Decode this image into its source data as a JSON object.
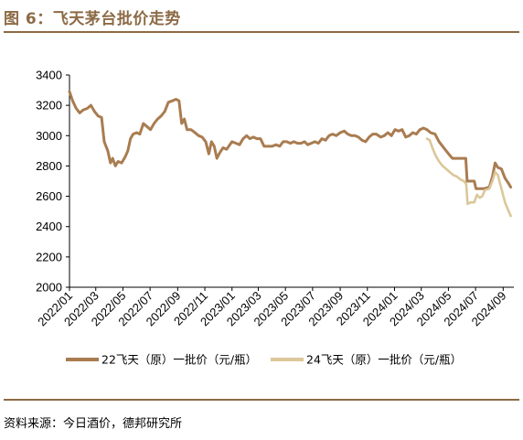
{
  "figure": {
    "title": "图 6：飞天茅台批价走势",
    "source": "资料来源：今日酒价，德邦研究所"
  },
  "chart_data": {
    "type": "line",
    "title": "",
    "xlabel": "",
    "ylabel": "",
    "ylim": [
      2000,
      3400
    ],
    "yticks": [
      "2000",
      "2200",
      "2400",
      "2600",
      "2800",
      "3000",
      "3200",
      "3400"
    ],
    "xticks": [
      "2022/01",
      "2022/03",
      "2022/05",
      "2022/07",
      "2022/09",
      "2022/11",
      "2023/01",
      "2023/03",
      "2023/05",
      "2023/07",
      "2023/09",
      "2023/11",
      "2024/01",
      "2024/03",
      "2024/05",
      "2024/07",
      "2024/09"
    ],
    "grid": false,
    "legend_position": "bottom",
    "series": [
      {
        "name": "22飞天（原）一批价（元/瓶）",
        "color": "#a97c50",
        "points": [
          [
            "2022/01/01",
            3290
          ],
          [
            "2022/01/08",
            3230
          ],
          [
            "2022/01/16",
            3180
          ],
          [
            "2022/01/24",
            3150
          ],
          [
            "2022/02/01",
            3170
          ],
          [
            "2022/02/10",
            3180
          ],
          [
            "2022/02/18",
            3200
          ],
          [
            "2022/02/26",
            3160
          ],
          [
            "2022/03/06",
            3130
          ],
          [
            "2022/03/14",
            3120
          ],
          [
            "2022/03/20",
            2960
          ],
          [
            "2022/03/28",
            2900
          ],
          [
            "2022/04/03",
            2820
          ],
          [
            "2022/04/08",
            2850
          ],
          [
            "2022/04/14",
            2800
          ],
          [
            "2022/04/20",
            2830
          ],
          [
            "2022/04/28",
            2820
          ],
          [
            "2022/05/06",
            2860
          ],
          [
            "2022/05/12",
            2900
          ],
          [
            "2022/05/18",
            2980
          ],
          [
            "2022/05/24",
            3010
          ],
          [
            "2022/06/01",
            3020
          ],
          [
            "2022/06/08",
            3010
          ],
          [
            "2022/06/16",
            3080
          ],
          [
            "2022/06/24",
            3060
          ],
          [
            "2022/07/02",
            3040
          ],
          [
            "2022/07/10",
            3080
          ],
          [
            "2022/07/18",
            3110
          ],
          [
            "2022/07/26",
            3130
          ],
          [
            "2022/08/03",
            3160
          ],
          [
            "2022/08/11",
            3220
          ],
          [
            "2022/08/20",
            3230
          ],
          [
            "2022/08/28",
            3240
          ],
          [
            "2022/09/04",
            3230
          ],
          [
            "2022/09/10",
            3080
          ],
          [
            "2022/09/16",
            3110
          ],
          [
            "2022/09/22",
            3040
          ],
          [
            "2022/10/01",
            3040
          ],
          [
            "2022/10/10",
            3020
          ],
          [
            "2022/10/18",
            3000
          ],
          [
            "2022/10/26",
            2990
          ],
          [
            "2022/11/03",
            2960
          ],
          [
            "2022/11/10",
            2880
          ],
          [
            "2022/11/16",
            2960
          ],
          [
            "2022/11/22",
            2930
          ],
          [
            "2022/11/28",
            2850
          ],
          [
            "2022/12/05",
            2890
          ],
          [
            "2022/12/12",
            2920
          ],
          [
            "2022/12/20",
            2910
          ],
          [
            "2023/01/01",
            2960
          ],
          [
            "2023/01/10",
            2950
          ],
          [
            "2023/01/18",
            2940
          ],
          [
            "2023/01/26",
            2980
          ],
          [
            "2023/02/03",
            3000
          ],
          [
            "2023/02/10",
            2980
          ],
          [
            "2023/02/18",
            2990
          ],
          [
            "2023/02/26",
            2980
          ],
          [
            "2023/03/06",
            2980
          ],
          [
            "2023/03/14",
            2930
          ],
          [
            "2023/03/22",
            2930
          ],
          [
            "2023/04/01",
            2930
          ],
          [
            "2023/04/10",
            2940
          ],
          [
            "2023/04/18",
            2930
          ],
          [
            "2023/04/26",
            2960
          ],
          [
            "2023/05/04",
            2960
          ],
          [
            "2023/05/12",
            2950
          ],
          [
            "2023/05/20",
            2960
          ],
          [
            "2023/05/28",
            2950
          ],
          [
            "2023/06/05",
            2950
          ],
          [
            "2023/06/13",
            2960
          ],
          [
            "2023/06/20",
            2940
          ],
          [
            "2023/06/28",
            2950
          ],
          [
            "2023/07/06",
            2960
          ],
          [
            "2023/07/14",
            2950
          ],
          [
            "2023/07/22",
            2980
          ],
          [
            "2023/07/30",
            2970
          ],
          [
            "2023/08/07",
            3000
          ],
          [
            "2023/08/15",
            3010
          ],
          [
            "2023/08/23",
            3000
          ],
          [
            "2023/09/01",
            3020
          ],
          [
            "2023/09/10",
            3030
          ],
          [
            "2023/09/18",
            3010
          ],
          [
            "2023/09/26",
            3000
          ],
          [
            "2023/10/04",
            3000
          ],
          [
            "2023/10/12",
            2990
          ],
          [
            "2023/10/20",
            2970
          ],
          [
            "2023/10/28",
            2960
          ],
          [
            "2023/11/05",
            2990
          ],
          [
            "2023/11/13",
            3010
          ],
          [
            "2023/11/21",
            3010
          ],
          [
            "2023/12/01",
            2990
          ],
          [
            "2023/12/09",
            3000
          ],
          [
            "2023/12/17",
            3020
          ],
          [
            "2023/12/25",
            3000
          ],
          [
            "2024/01/02",
            3040
          ],
          [
            "2024/01/10",
            3030
          ],
          [
            "2024/01/18",
            3040
          ],
          [
            "2024/01/26",
            2990
          ],
          [
            "2024/02/03",
            3000
          ],
          [
            "2024/02/11",
            3020
          ],
          [
            "2024/02/19",
            3010
          ],
          [
            "2024/02/27",
            3040
          ],
          [
            "2024/03/06",
            3050
          ],
          [
            "2024/03/14",
            3040
          ],
          [
            "2024/03/22",
            3020
          ],
          [
            "2024/04/01",
            3010
          ],
          [
            "2024/04/10",
            2960
          ],
          [
            "2024/04/18",
            2930
          ],
          [
            "2024/04/26",
            2900
          ],
          [
            "2024/05/04",
            2870
          ],
          [
            "2024/05/10",
            2850
          ],
          [
            "2024/05/20",
            2850
          ],
          [
            "2024/06/01",
            2850
          ],
          [
            "2024/06/09",
            2850
          ],
          [
            "2024/06/12",
            2700
          ],
          [
            "2024/06/20",
            2700
          ],
          [
            "2024/06/28",
            2700
          ],
          [
            "2024/07/02",
            2650
          ],
          [
            "2024/07/10",
            2650
          ],
          [
            "2024/07/20",
            2650
          ],
          [
            "2024/08/01",
            2660
          ],
          [
            "2024/08/08",
            2730
          ],
          [
            "2024/08/14",
            2820
          ],
          [
            "2024/08/20",
            2790
          ],
          [
            "2024/08/28",
            2780
          ],
          [
            "2024/09/05",
            2720
          ],
          [
            "2024/09/12",
            2690
          ],
          [
            "2024/09/18",
            2660
          ]
        ]
      },
      {
        "name": "24飞天（原）一批价（元/瓶）",
        "color": "#dbc79a",
        "points": [
          [
            "2024/03/14",
            2980
          ],
          [
            "2024/03/20",
            2970
          ],
          [
            "2024/03/26",
            2920
          ],
          [
            "2024/04/02",
            2870
          ],
          [
            "2024/04/10",
            2830
          ],
          [
            "2024/04/18",
            2800
          ],
          [
            "2024/04/26",
            2780
          ],
          [
            "2024/05/04",
            2760
          ],
          [
            "2024/05/12",
            2740
          ],
          [
            "2024/05/20",
            2730
          ],
          [
            "2024/05/28",
            2710
          ],
          [
            "2024/06/05",
            2700
          ],
          [
            "2024/06/10",
            2680
          ],
          [
            "2024/06/13",
            2550
          ],
          [
            "2024/06/20",
            2560
          ],
          [
            "2024/06/28",
            2560
          ],
          [
            "2024/07/04",
            2610
          ],
          [
            "2024/07/10",
            2590
          ],
          [
            "2024/07/16",
            2600
          ],
          [
            "2024/07/22",
            2640
          ],
          [
            "2024/08/01",
            2650
          ],
          [
            "2024/08/08",
            2700
          ],
          [
            "2024/08/14",
            2760
          ],
          [
            "2024/08/20",
            2740
          ],
          [
            "2024/08/28",
            2650
          ],
          [
            "2024/09/05",
            2560
          ],
          [
            "2024/09/12",
            2510
          ],
          [
            "2024/09/18",
            2470
          ]
        ]
      }
    ]
  }
}
